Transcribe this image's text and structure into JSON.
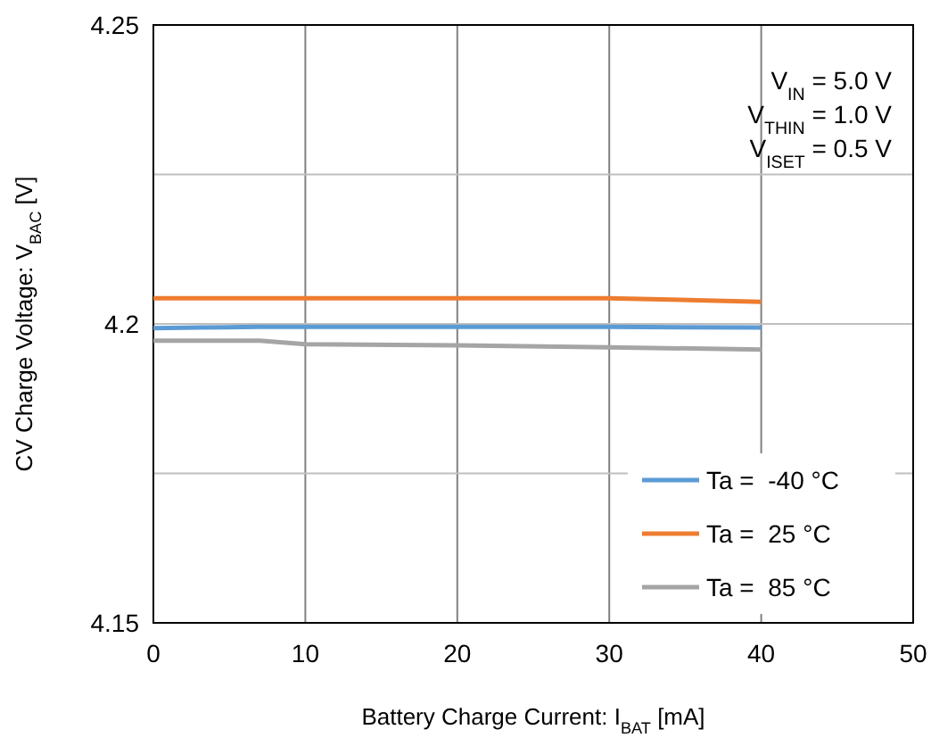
{
  "chart_data": {
    "type": "line",
    "xlabel": "Battery Charge Current: I$_{BAT}$ [mA]",
    "ylabel": "CV Charge Voltage: V$_{BAC}$ [V]",
    "x": [
      0,
      3,
      7,
      10,
      20,
      30,
      40
    ],
    "xlim": [
      0,
      50
    ],
    "xticks": [
      0,
      10,
      20,
      30,
      40,
      50
    ],
    "ylim": [
      4.15,
      4.25
    ],
    "yticks": [
      4.15,
      {
        "value": 4.175,
        "label": null
      },
      4.2,
      {
        "value": 4.225,
        "label": null
      },
      4.25
    ],
    "grid": true,
    "legend": "bottom right",
    "marker": "none",
    "line_style": "solid",
    "annotations": [
      "V$_{IN}$ = 5.0 V",
      "V$_{THIN}$ = 1.0 V",
      "V$_{ISET}$ = 0.5 V"
    ],
    "series": [
      {
        "name": "Ta =  -40 °C",
        "color": "#5b9bd5",
        "values": [
          4.1993,
          4.1994,
          4.1995,
          4.1995,
          4.1995,
          4.1995,
          4.1994
        ]
      },
      {
        "name": "Ta =  25 °C",
        "color": "#ed7d31",
        "values": [
          4.2043,
          4.2043,
          4.2043,
          4.2043,
          4.2043,
          4.2043,
          4.2037
        ]
      },
      {
        "name": "Ta =  85 °C",
        "color": "#a5a5a5",
        "values": [
          4.1972,
          4.1972,
          4.1972,
          4.1966,
          4.1964,
          4.1961,
          4.1957
        ]
      }
    ]
  }
}
